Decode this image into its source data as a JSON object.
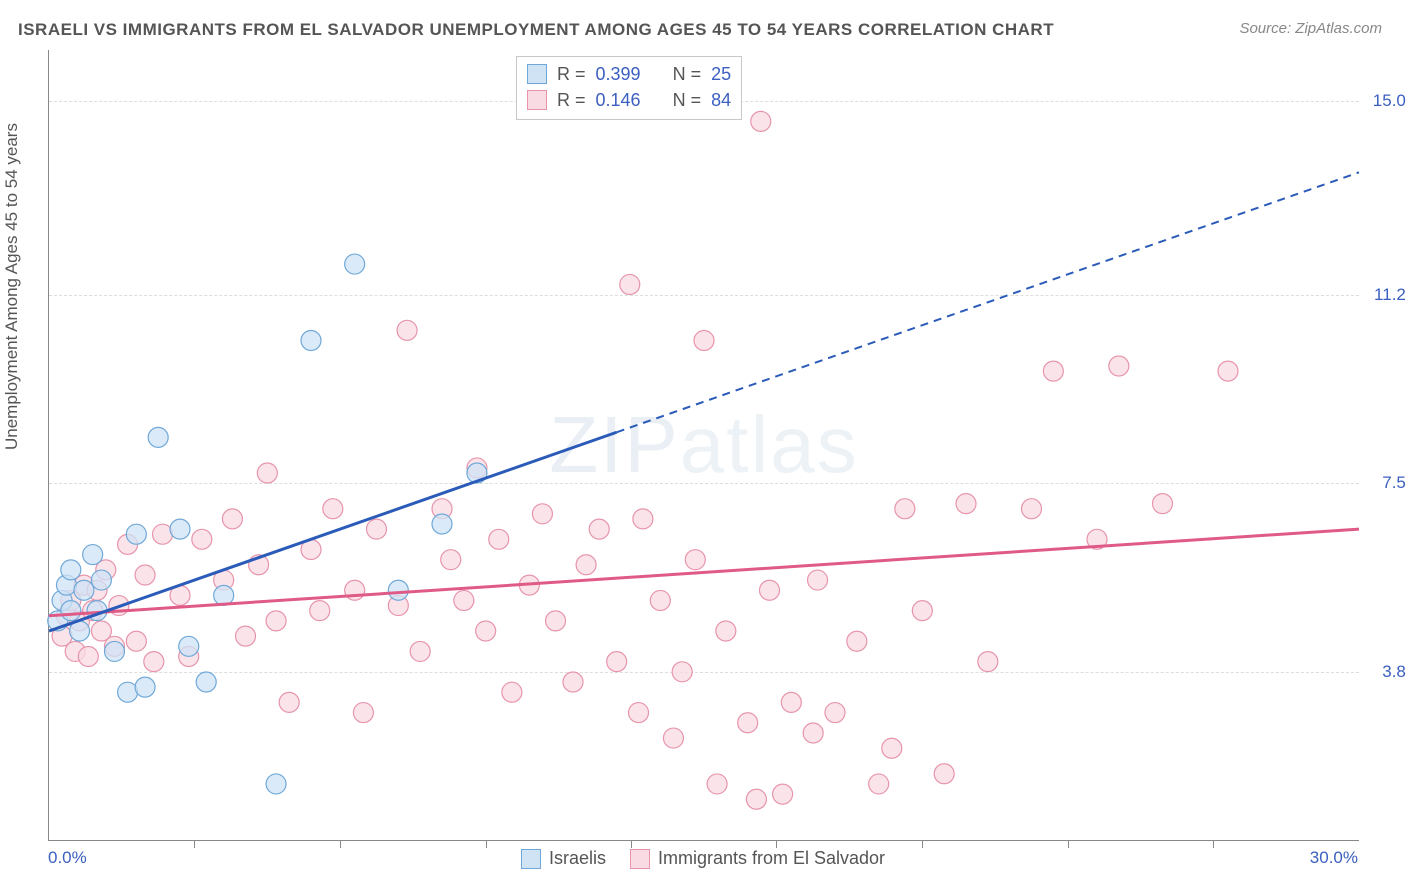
{
  "title": "ISRAELI VS IMMIGRANTS FROM EL SALVADOR UNEMPLOYMENT AMONG AGES 45 TO 54 YEARS CORRELATION CHART",
  "source_label": "Source: ZipAtlas.com",
  "ylabel": "Unemployment Among Ages 45 to 54 years",
  "watermark_a": "ZIP",
  "watermark_b": "atlas",
  "chart": {
    "type": "scatter",
    "xlim": [
      0,
      30
    ],
    "ylim": [
      0.5,
      16
    ],
    "x_origin_label": "0.0%",
    "x_max_label": "30.0%",
    "x_tick_positions": [
      3.33,
      6.66,
      10.0,
      13.33,
      16.66,
      20.0,
      23.33,
      26.66
    ],
    "y_ticks": [
      {
        "v": 3.8,
        "label": "3.8%"
      },
      {
        "v": 7.5,
        "label": "7.5%"
      },
      {
        "v": 11.2,
        "label": "11.2%"
      },
      {
        "v": 15.0,
        "label": "15.0%"
      }
    ],
    "background_color": "#ffffff",
    "grid_color": "#dddddd",
    "title_color": "#555555",
    "axis_color": "#888888",
    "tick_label_color": "#3b5fc0",
    "marker_radius": 10,
    "marker_stroke_width": 1.2,
    "line_width": 3,
    "dashed_pattern": "8 6"
  },
  "series": {
    "israelis": {
      "label": "Israelis",
      "fill": "#cfe3f5",
      "stroke": "#6fa8d8",
      "line_color": "#2b5bb8",
      "R": "0.399",
      "N": "25",
      "regression": {
        "x1": 0,
        "y1": 4.6,
        "x2": 30,
        "y2": 13.6,
        "solid_until_x": 13
      },
      "points": [
        [
          0.2,
          4.8
        ],
        [
          0.3,
          5.2
        ],
        [
          0.4,
          5.5
        ],
        [
          0.5,
          5.0
        ],
        [
          0.5,
          5.8
        ],
        [
          0.7,
          4.6
        ],
        [
          0.8,
          5.4
        ],
        [
          1.0,
          6.1
        ],
        [
          1.1,
          5.0
        ],
        [
          1.2,
          5.6
        ],
        [
          1.5,
          4.2
        ],
        [
          1.8,
          3.4
        ],
        [
          2.0,
          6.5
        ],
        [
          2.2,
          3.5
        ],
        [
          2.5,
          8.4
        ],
        [
          3.0,
          6.6
        ],
        [
          3.2,
          4.3
        ],
        [
          3.6,
          3.6
        ],
        [
          4.0,
          5.3
        ],
        [
          5.2,
          1.6
        ],
        [
          6.0,
          10.3
        ],
        [
          7.0,
          11.8
        ],
        [
          8.0,
          5.4
        ],
        [
          9.0,
          6.7
        ],
        [
          9.8,
          7.7
        ]
      ]
    },
    "salvador": {
      "label": "Immigrants from El Salvador",
      "fill": "#f8dbe3",
      "stroke": "#e794ab",
      "line_color": "#e05a87",
      "R": "0.146",
      "N": "84",
      "regression": {
        "x1": 0,
        "y1": 4.9,
        "x2": 30,
        "y2": 6.6,
        "solid_until_x": 30
      },
      "points": [
        [
          0.3,
          4.5
        ],
        [
          0.4,
          4.9
        ],
        [
          0.5,
          5.2
        ],
        [
          0.6,
          4.2
        ],
        [
          0.7,
          4.8
        ],
        [
          0.8,
          5.5
        ],
        [
          0.9,
          4.1
        ],
        [
          1.0,
          5.0
        ],
        [
          1.1,
          5.4
        ],
        [
          1.2,
          4.6
        ],
        [
          1.3,
          5.8
        ],
        [
          1.5,
          4.3
        ],
        [
          1.6,
          5.1
        ],
        [
          1.8,
          6.3
        ],
        [
          2.0,
          4.4
        ],
        [
          2.2,
          5.7
        ],
        [
          2.4,
          4.0
        ],
        [
          2.6,
          6.5
        ],
        [
          3.0,
          5.3
        ],
        [
          3.2,
          4.1
        ],
        [
          3.5,
          6.4
        ],
        [
          4.0,
          5.6
        ],
        [
          4.2,
          6.8
        ],
        [
          4.5,
          4.5
        ],
        [
          4.8,
          5.9
        ],
        [
          5.0,
          7.7
        ],
        [
          5.2,
          4.8
        ],
        [
          5.5,
          3.2
        ],
        [
          6.0,
          6.2
        ],
        [
          6.2,
          5.0
        ],
        [
          6.5,
          7.0
        ],
        [
          7.0,
          5.4
        ],
        [
          7.2,
          3.0
        ],
        [
          7.5,
          6.6
        ],
        [
          8.0,
          5.1
        ],
        [
          8.2,
          10.5
        ],
        [
          8.5,
          4.2
        ],
        [
          9.0,
          7.0
        ],
        [
          9.2,
          6.0
        ],
        [
          9.5,
          5.2
        ],
        [
          9.8,
          7.8
        ],
        [
          10.0,
          4.6
        ],
        [
          10.3,
          6.4
        ],
        [
          10.6,
          3.4
        ],
        [
          11.0,
          5.5
        ],
        [
          11.3,
          6.9
        ],
        [
          11.6,
          4.8
        ],
        [
          12.0,
          3.6
        ],
        [
          12.3,
          5.9
        ],
        [
          12.6,
          6.6
        ],
        [
          13.0,
          4.0
        ],
        [
          13.3,
          11.4
        ],
        [
          13.5,
          3.0
        ],
        [
          13.6,
          6.8
        ],
        [
          14.0,
          5.2
        ],
        [
          14.3,
          2.5
        ],
        [
          14.5,
          3.8
        ],
        [
          14.8,
          6.0
        ],
        [
          15.0,
          10.3
        ],
        [
          15.3,
          1.6
        ],
        [
          15.5,
          4.6
        ],
        [
          16.0,
          2.8
        ],
        [
          16.2,
          1.3
        ],
        [
          16.3,
          14.6
        ],
        [
          16.5,
          5.4
        ],
        [
          16.8,
          1.4
        ],
        [
          17.0,
          3.2
        ],
        [
          17.5,
          2.6
        ],
        [
          17.6,
          5.6
        ],
        [
          18.0,
          3.0
        ],
        [
          18.5,
          4.4
        ],
        [
          19.0,
          1.6
        ],
        [
          19.3,
          2.3
        ],
        [
          19.6,
          7.0
        ],
        [
          20.0,
          5.0
        ],
        [
          20.5,
          1.8
        ],
        [
          21.0,
          7.1
        ],
        [
          21.5,
          4.0
        ],
        [
          22.5,
          7.0
        ],
        [
          23.0,
          9.7
        ],
        [
          24.0,
          6.4
        ],
        [
          24.5,
          9.8
        ],
        [
          25.5,
          7.1
        ],
        [
          27.0,
          9.7
        ]
      ]
    }
  },
  "legend": {
    "R_label": "R =",
    "N_label": "N ="
  }
}
